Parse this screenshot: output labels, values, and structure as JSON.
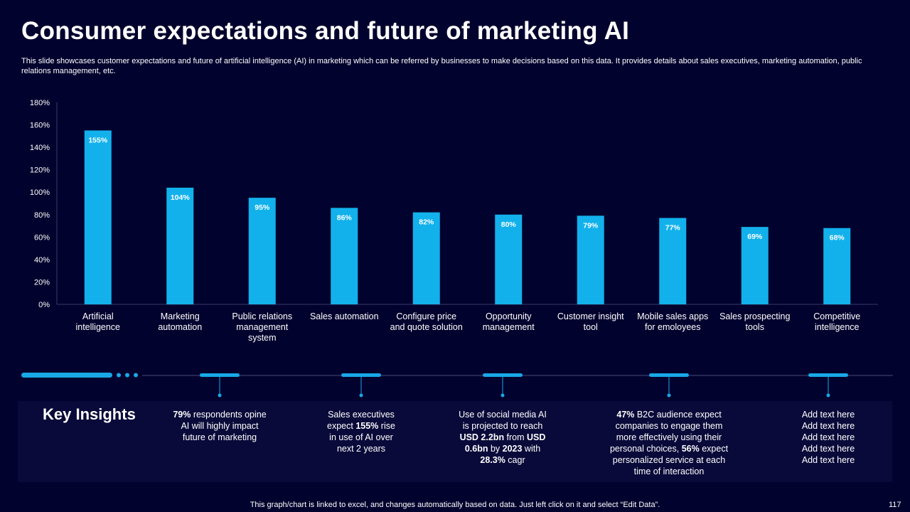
{
  "title": "Consumer expectations and future of marketing AI",
  "subtitle": "This slide showcases customer expectations and future of artificial intelligence (AI) in marketing which can be referred by businesses to make decisions based on this data. It provides details about sales executives, marketing automation, public relations management, etc.",
  "colors": {
    "background": "#02022e",
    "bar": "#12b1ec",
    "panel": "#0a0a3a",
    "accent": "#19a8e6"
  },
  "chart_data": {
    "type": "bar",
    "title": "",
    "xlabel": "",
    "ylabel": "",
    "ylim": [
      0,
      180
    ],
    "y_ticks": [
      "0%",
      "20%",
      "40%",
      "60%",
      "80%",
      "100%",
      "120%",
      "140%",
      "160%",
      "180%"
    ],
    "categories": [
      [
        "Artificial",
        "intelligence"
      ],
      [
        "Marketing",
        "automation"
      ],
      [
        "Public relations",
        "management",
        "system"
      ],
      [
        "Sales automation"
      ],
      [
        "Configure price",
        "and quote solution"
      ],
      [
        "Opportunity",
        "management"
      ],
      [
        "Customer insight",
        "tool"
      ],
      [
        "Mobile sales apps",
        "for emoloyees"
      ],
      [
        "Sales prospecting",
        "tools"
      ],
      [
        "Competitive",
        "intelligence"
      ]
    ],
    "values": [
      155,
      104,
      95,
      86,
      82,
      80,
      79,
      77,
      69,
      68
    ],
    "data_labels": [
      "155%",
      "104%",
      "95%",
      "86%",
      "82%",
      "80%",
      "79%",
      "77%",
      "69%",
      "68%"
    ]
  },
  "key_insights": {
    "title": "Key Insights",
    "items": [
      {
        "lines": [
          [
            "79%",
            " respondents opine"
          ],
          [
            "AI will highly impact"
          ],
          [
            "future of marketing"
          ]
        ]
      },
      {
        "lines": [
          [
            "Sales executives"
          ],
          [
            "expect ",
            "155%",
            " rise"
          ],
          [
            "in use of AI over"
          ],
          [
            "next 2 years"
          ]
        ]
      },
      {
        "lines": [
          [
            "Use of social media AI"
          ],
          [
            "is projected to reach"
          ],
          [
            "USD 2.2bn",
            " from ",
            "USD"
          ],
          [
            "0.6bn",
            " by ",
            "2023",
            " with"
          ],
          [
            "28.3%",
            " cagr"
          ]
        ]
      },
      {
        "lines": [
          [
            "47%",
            " B2C audience expect"
          ],
          [
            "companies to engage them"
          ],
          [
            "more effectively using their"
          ],
          [
            "personal choices, ",
            "56%",
            " expect"
          ],
          [
            "personalized service at each"
          ],
          [
            "time of interaction"
          ]
        ]
      },
      {
        "lines": [
          [
            "Add text here"
          ],
          [
            "Add text here"
          ],
          [
            "Add text here"
          ],
          [
            "Add text here"
          ],
          [
            "Add text here"
          ]
        ]
      }
    ],
    "bold_flags": [
      [
        [
          true,
          false
        ],
        [
          false
        ],
        [
          false
        ]
      ],
      [
        [
          false
        ],
        [
          false,
          true,
          false
        ],
        [
          false
        ],
        [
          false
        ]
      ],
      [
        [
          false
        ],
        [
          false
        ],
        [
          true,
          false,
          true
        ],
        [
          true,
          false,
          true,
          false
        ],
        [
          true,
          false
        ]
      ],
      [
        [
          true,
          false
        ],
        [
          false
        ],
        [
          false
        ],
        [
          false,
          true,
          false
        ],
        [
          false
        ],
        [
          false
        ]
      ],
      [
        [
          false
        ],
        [
          false
        ],
        [
          false
        ],
        [
          false
        ],
        [
          false
        ]
      ]
    ]
  },
  "footer": "This graph/chart is linked to excel, and changes automatically based on data. Just left click on it and select “Edit Data”.",
  "page_number": "117"
}
